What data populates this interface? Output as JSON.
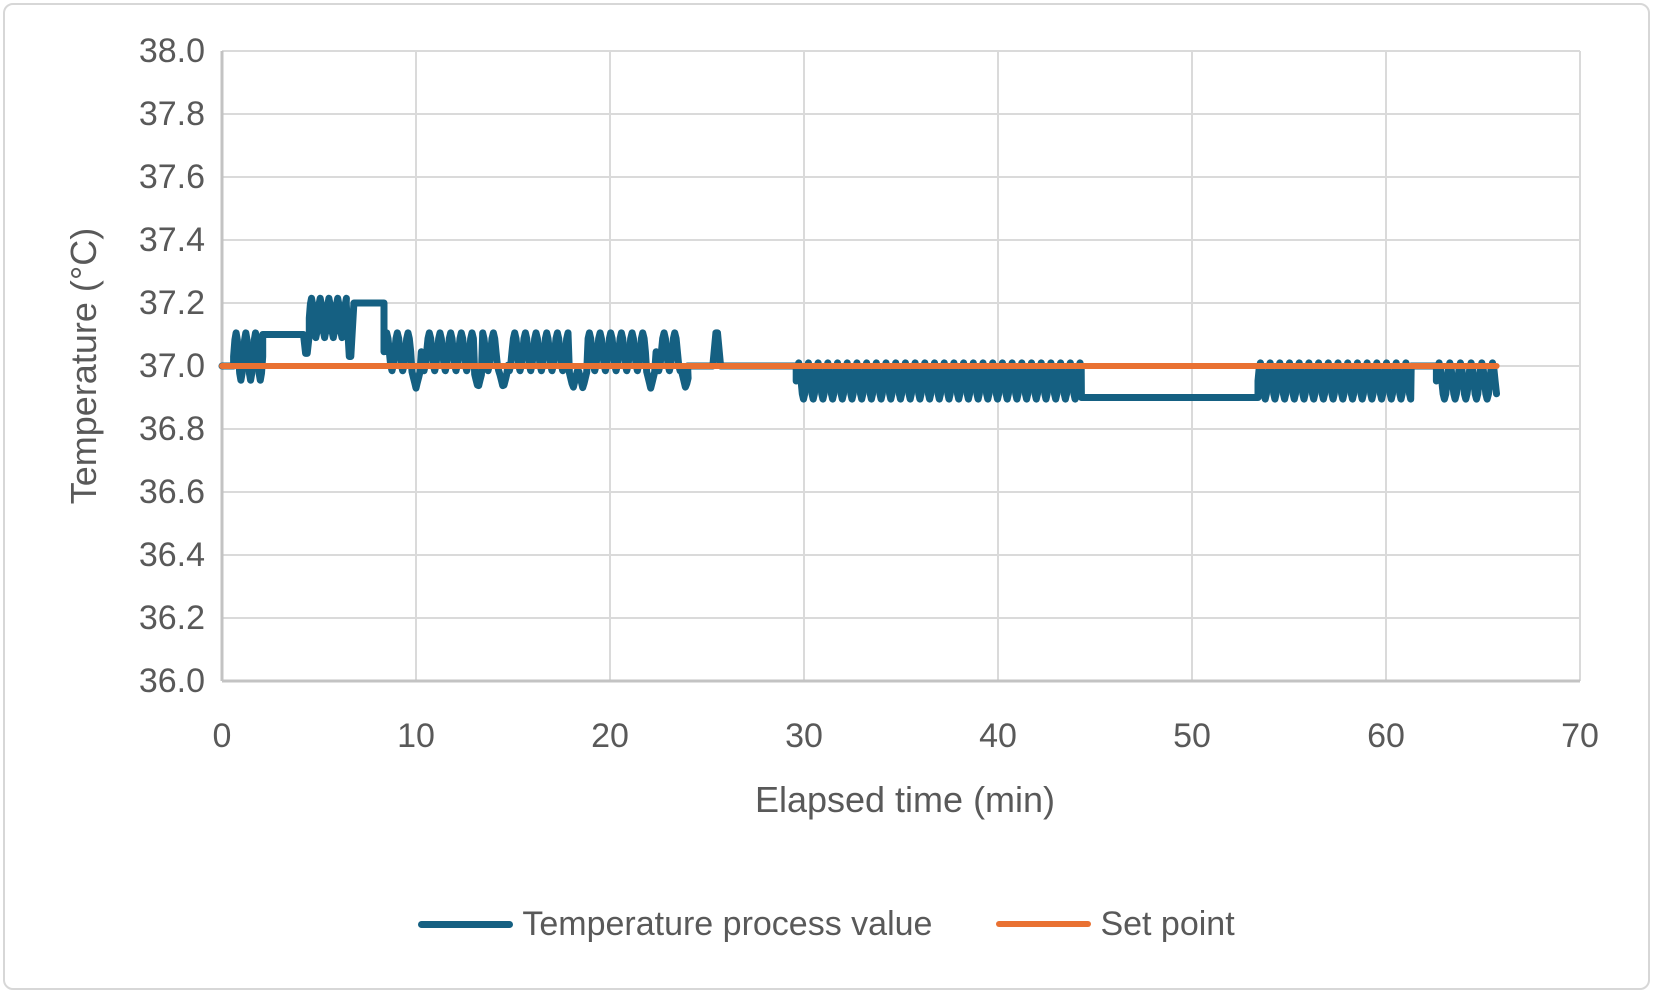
{
  "frame": {
    "border_color": "#d7d7d7",
    "background": "#ffffff"
  },
  "chart_data": {
    "type": "line",
    "title": "",
    "xlabel": "Elapsed time (min)",
    "ylabel": "Temperature (°C)",
    "xlim": [
      0,
      70
    ],
    "ylim": [
      36.0,
      38.0
    ],
    "x_ticks": [
      0,
      10,
      20,
      30,
      40,
      50,
      60,
      70
    ],
    "y_ticks": [
      "36.0",
      "36.2",
      "36.4",
      "36.6",
      "36.8",
      "37.0",
      "37.2",
      "37.4",
      "37.6",
      "37.8",
      "38.0"
    ],
    "grid": true,
    "gridline_color": "#dadada",
    "axis_color": "#c3c3c3",
    "text_color": "#595959",
    "legend_position": "bottom",
    "x_end": 65.7,
    "series": [
      {
        "name": "Temperature process value",
        "color": "#156082",
        "stroke_width": 7,
        "description": "Measured temperature, quantized to ~0.1 °C steps, oscillating around the set point",
        "segments": [
          {
            "type": "flat",
            "t0": 0.0,
            "t1": 0.6,
            "v": 37.0
          },
          {
            "type": "osc",
            "t0": 0.6,
            "t1": 2.1,
            "lo": 36.955,
            "hi": 37.105,
            "period": 0.5
          },
          {
            "type": "flat",
            "t0": 2.1,
            "t1": 4.2,
            "v": 37.1
          },
          {
            "type": "vee",
            "t0": 4.2,
            "t1": 4.5,
            "base": 37.1,
            "v": 37.04
          },
          {
            "type": "osc",
            "t0": 4.5,
            "t1": 6.4,
            "lo": 37.09,
            "hi": 37.215,
            "period": 0.45
          },
          {
            "type": "vee",
            "t0": 6.4,
            "t1": 6.8,
            "base": 37.2,
            "v": 37.03
          },
          {
            "type": "flat",
            "t0": 6.8,
            "t1": 8.35,
            "v": 37.2
          },
          {
            "type": "osc",
            "t0": 8.35,
            "t1": 24.0,
            "lo": 36.985,
            "hi": 37.105,
            "period": 0.55,
            "dips": {
              "times": [
                10.0,
                13.2,
                14.5,
                18.1,
                18.6,
                22.1,
                23.9
              ],
              "v": 36.93,
              "halfwidth": 0.22
            }
          },
          {
            "type": "flat",
            "t0": 24.0,
            "t1": 25.3,
            "v": 37.0
          },
          {
            "type": "vee",
            "t0": 25.3,
            "t1": 25.7,
            "base": 37.0,
            "v": 37.105
          },
          {
            "type": "flat",
            "t0": 25.7,
            "t1": 29.6,
            "v": 37.0
          },
          {
            "type": "osc",
            "t0": 29.6,
            "t1": 44.3,
            "lo": 36.895,
            "hi": 37.01,
            "period": 0.5
          },
          {
            "type": "flat",
            "t0": 44.3,
            "t1": 53.4,
            "v": 36.9
          },
          {
            "type": "osc",
            "t0": 53.4,
            "t1": 61.3,
            "lo": 36.895,
            "hi": 37.01,
            "period": 0.5
          },
          {
            "type": "flat",
            "t0": 61.3,
            "t1": 62.6,
            "v": 37.0
          },
          {
            "type": "osc",
            "t0": 62.6,
            "t1": 65.7,
            "lo": 36.895,
            "hi": 37.01,
            "period": 0.55
          }
        ]
      },
      {
        "name": "Set point",
        "color": "#E97132",
        "stroke_width": 6,
        "description": "Constant target temperature",
        "segments": [
          {
            "type": "flat",
            "t0": 0.0,
            "t1": 65.7,
            "v": 37.0
          }
        ]
      }
    ]
  },
  "legend": {
    "items": [
      {
        "label": "Temperature process value",
        "color": "#156082"
      },
      {
        "label": "Set point",
        "color": "#E97132"
      }
    ]
  }
}
